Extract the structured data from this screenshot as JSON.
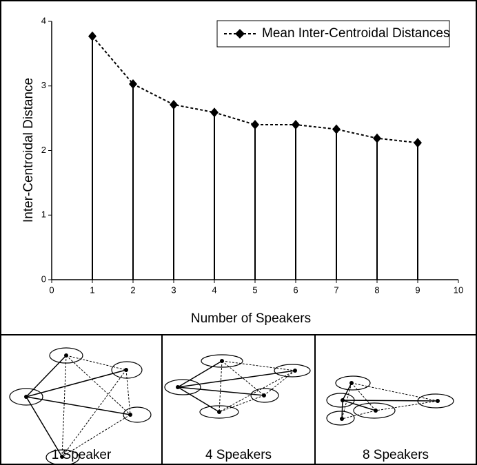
{
  "chart_data": {
    "type": "line",
    "xlabel": "Number of Speakers",
    "ylabel": "Inter-Centroidal Distance",
    "x": [
      1,
      2,
      3,
      4,
      5,
      6,
      7,
      8,
      9
    ],
    "series": [
      {
        "name": "Mean Inter-Centroidal Distances",
        "color": "#000000",
        "values": [
          3.77,
          3.03,
          2.71,
          2.59,
          2.4,
          2.4,
          2.33,
          2.19,
          2.12
        ]
      }
    ],
    "xlim": [
      0,
      10
    ],
    "xticks": [
      0,
      1,
      2,
      3,
      4,
      5,
      6,
      7,
      8,
      9,
      10
    ],
    "ylim": [
      0,
      4
    ],
    "yticks": [
      0,
      1,
      2,
      3,
      4
    ],
    "legend": "top-right",
    "drop_lines": true
  },
  "panels": [
    {
      "label": "1 Speaker"
    },
    {
      "label": "4 Speakers"
    },
    {
      "label": "8 Speakers"
    }
  ]
}
